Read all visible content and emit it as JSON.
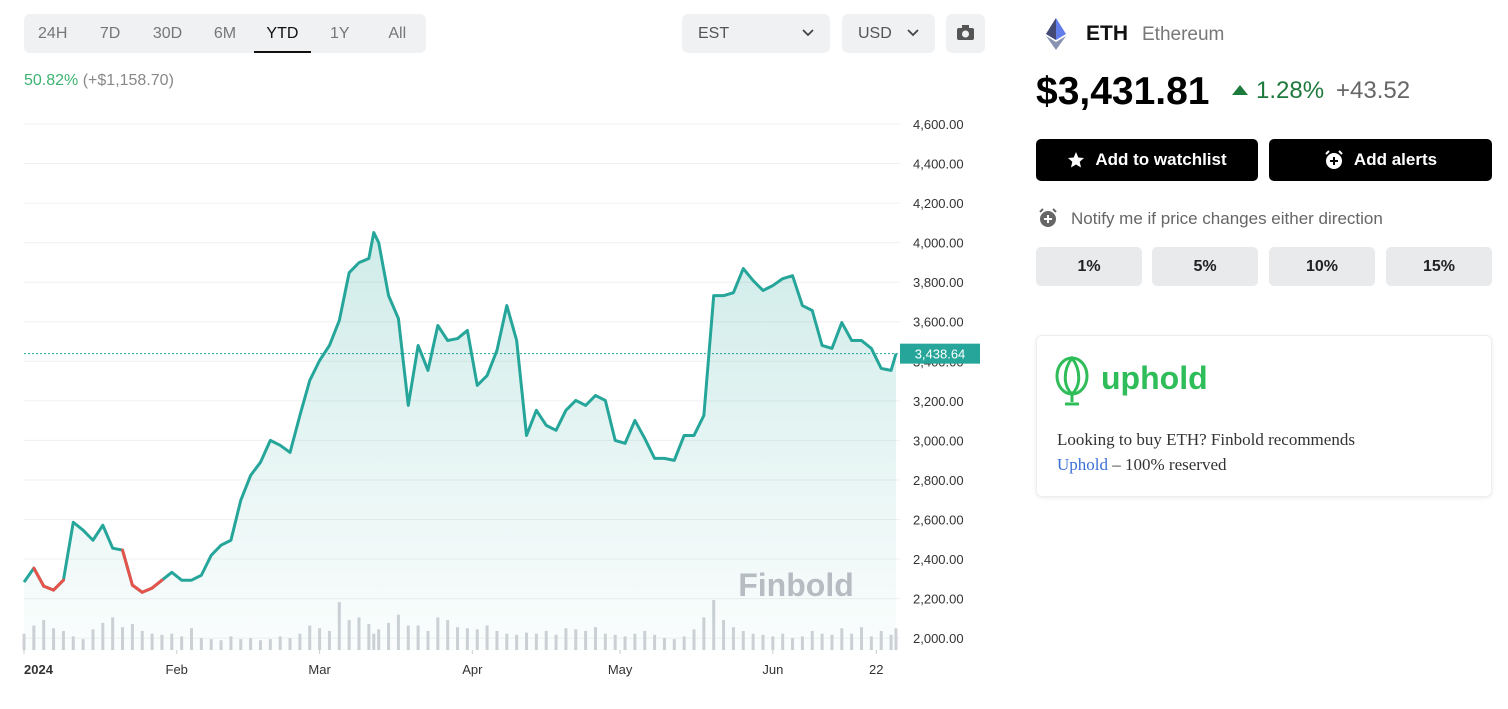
{
  "timeframe_tabs": {
    "options": [
      "24H",
      "7D",
      "30D",
      "6M",
      "YTD",
      "1Y",
      "All"
    ],
    "selected": 4
  },
  "timezone": "EST",
  "currency": "USD",
  "performance": {
    "percent": "50.82%",
    "change": "(+$1,158.70)"
  },
  "chart_data": {
    "type": "line",
    "x": [
      0,
      2,
      4,
      6,
      8,
      10,
      12,
      14,
      16,
      18,
      20,
      22,
      24,
      26,
      28,
      30,
      32,
      34,
      36,
      38,
      40,
      42,
      44,
      46,
      48,
      50,
      52,
      54,
      56,
      58,
      60,
      62,
      64,
      66,
      68,
      70,
      71,
      72,
      74,
      76,
      78,
      80,
      82,
      84,
      86,
      88,
      90,
      92,
      94,
      96,
      98,
      100,
      102,
      104,
      106,
      108,
      110,
      112,
      114,
      116,
      118,
      120,
      122,
      124,
      126,
      128,
      130,
      132,
      134,
      136,
      138,
      140,
      142,
      144,
      146,
      148,
      150,
      152,
      154,
      156,
      158,
      160,
      162,
      164,
      166,
      168,
      170,
      172,
      174,
      176,
      177
    ],
    "values": [
      2283,
      2354,
      2263,
      2243,
      2293,
      2586,
      2546,
      2495,
      2571,
      2455,
      2445,
      2268,
      2232,
      2253,
      2293,
      2333,
      2293,
      2293,
      2318,
      2419,
      2470,
      2495,
      2697,
      2823,
      2889,
      3000,
      2975,
      2939,
      3126,
      3303,
      3404,
      3480,
      3606,
      3848,
      3899,
      3920,
      4051,
      4000,
      3732,
      3616,
      3177,
      3480,
      3354,
      3581,
      3505,
      3515,
      3556,
      3278,
      3328,
      3455,
      3682,
      3505,
      3025,
      3152,
      3076,
      3051,
      3152,
      3202,
      3177,
      3227,
      3202,
      3000,
      2985,
      3101,
      3010,
      2909,
      2909,
      2899,
      3025,
      3025,
      3126,
      3732,
      3732,
      3747,
      3869,
      3808,
      3758,
      3783,
      3818,
      3833,
      3682,
      3657,
      3480,
      3465,
      3596,
      3505,
      3505,
      3465,
      3364,
      3354,
      3438.64
    ],
    "volume": [
      30,
      45,
      55,
      40,
      35,
      25,
      20,
      38,
      50,
      60,
      42,
      48,
      35,
      30,
      28,
      30,
      25,
      40,
      22,
      20,
      18,
      25,
      20,
      22,
      18,
      20,
      25,
      22,
      30,
      45,
      40,
      35,
      88,
      55,
      60,
      48,
      30,
      38,
      50,
      65,
      45,
      45,
      35,
      60,
      55,
      42,
      40,
      38,
      45,
      35,
      30,
      28,
      32,
      30,
      35,
      28,
      40,
      38,
      35,
      42,
      30,
      28,
      25,
      30,
      35,
      28,
      22,
      20,
      25,
      38,
      60,
      92,
      55,
      42,
      35,
      30,
      28,
      25,
      30,
      22,
      25,
      35,
      30,
      28,
      40,
      30,
      42,
      25,
      35,
      28,
      40
    ],
    "xlim": [
      0,
      177
    ],
    "xticks": [
      {
        "value": 0,
        "label": "2024"
      },
      {
        "value": 31,
        "label": "Feb"
      },
      {
        "value": 60,
        "label": "Mar"
      },
      {
        "value": 91,
        "label": "Apr"
      },
      {
        "value": 121,
        "label": "May"
      },
      {
        "value": 152,
        "label": "Jun"
      },
      {
        "value": 173,
        "label": "22"
      }
    ],
    "ylim": [
      1940,
      4600
    ],
    "yticks": [
      {
        "value": 2000,
        "label": "2,000.00"
      },
      {
        "value": 2200,
        "label": "2,200.00"
      },
      {
        "value": 2400,
        "label": "2,400.00"
      },
      {
        "value": 2600,
        "label": "2,600.00"
      },
      {
        "value": 2800,
        "label": "2,800.00"
      },
      {
        "value": 3000,
        "label": "3,000.00"
      },
      {
        "value": 3200,
        "label": "3,200.00"
      },
      {
        "value": 3400,
        "label": "3,400.00"
      },
      {
        "value": 3600,
        "label": "3,600.00"
      },
      {
        "value": 3800,
        "label": "3,800.00"
      },
      {
        "value": 4000,
        "label": "4,000.00"
      },
      {
        "value": 4200,
        "label": "4,200.00"
      },
      {
        "value": 4400,
        "label": "4,400.00"
      },
      {
        "value": 4600,
        "label": "4,600.00"
      }
    ],
    "current_price": {
      "value": 3438.64,
      "label": "3,438.64"
    },
    "watermark": "Finbold",
    "color": "#26a69a",
    "down_color": "#e5534b",
    "volume_color": "#cfd1d6",
    "grid": true
  },
  "asset": {
    "symbol": "ETH",
    "name": "Ethereum",
    "price": "$3,431.81",
    "change_percent": "1.28%",
    "change": "+43.52"
  },
  "actions": [
    "Add to watchlist",
    "Add alerts"
  ],
  "alerts": {
    "prompt": "Notify me if price changes either direction",
    "options": [
      "1%",
      "5%",
      "10%",
      "15%"
    ]
  },
  "sponsor": {
    "brand": "uphold",
    "text": "Looking to buy ETH? Finbold recommends",
    "link": "Uphold",
    "suffix": "– 100% reserved"
  }
}
